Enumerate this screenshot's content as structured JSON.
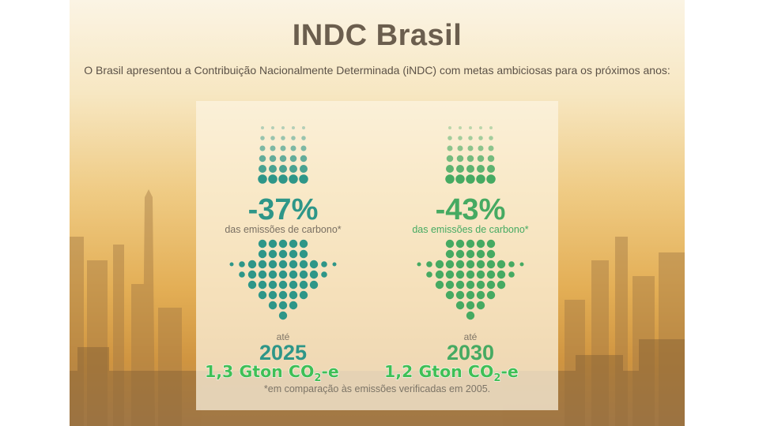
{
  "slide": {
    "title": "INDC Brasil",
    "subtitle": "O Brasil apresentou a Contribuição Nacionalmente Determinada (iNDC) com metas ambiciosas para os próximos anos:"
  },
  "targets": [
    {
      "reduction": "-37%",
      "description": "das emissões de carbono*",
      "until_label": "até",
      "year": "2025",
      "emissions_value": "1,3 Gton CO",
      "emissions_subscript": "2",
      "emissions_suffix": "-e",
      "color": "#2e9688"
    },
    {
      "reduction": "-43%",
      "description": "das emissões de carbono*",
      "until_label": "até",
      "year": "2030",
      "emissions_value": "1,2 Gton CO",
      "emissions_subscript": "2",
      "emissions_suffix": "-e",
      "color": "#46aa62"
    }
  ],
  "footnote": "*em comparação às emissões verificadas em 2005.",
  "colors": {
    "teal": "#2e9688",
    "green": "#46aa62",
    "title": "#6b5e4e",
    "overlay_text": "#3fbf56"
  }
}
